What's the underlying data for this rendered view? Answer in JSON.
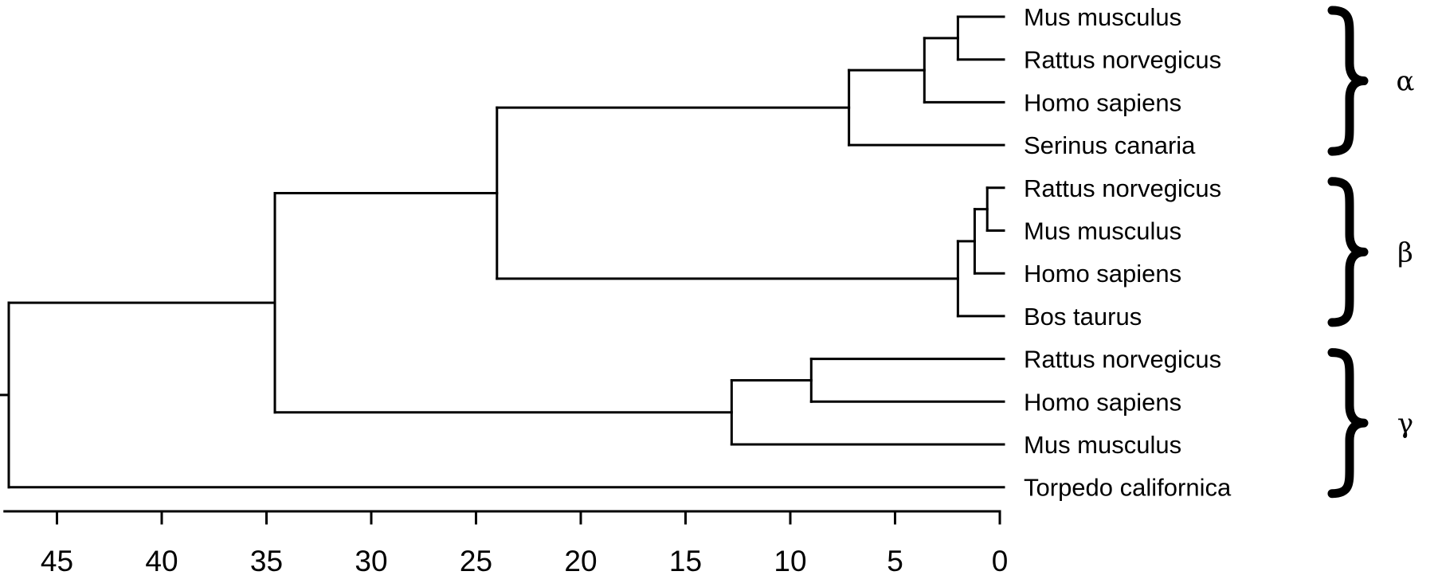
{
  "chart_data": {
    "type": "dendrogram",
    "x_axis": {
      "ticks": [
        "45",
        "40",
        "35",
        "30",
        "25",
        "20",
        "15",
        "10",
        "5",
        "0"
      ],
      "range": [
        47.5,
        0
      ]
    },
    "leaves": [
      {
        "id": "L1",
        "label": "Mus musculus"
      },
      {
        "id": "L2",
        "label": "Rattus norvegicus"
      },
      {
        "id": "L3",
        "label": "Homo sapiens"
      },
      {
        "id": "L4",
        "label": "Serinus canaria"
      },
      {
        "id": "L5",
        "label": "Rattus norvegicus"
      },
      {
        "id": "L6",
        "label": "Mus musculus"
      },
      {
        "id": "L7",
        "label": "Homo sapiens"
      },
      {
        "id": "L8",
        "label": "Bos taurus"
      },
      {
        "id": "L9",
        "label": "Rattus norvegicus"
      },
      {
        "id": "L10",
        "label": "Homo sapiens"
      },
      {
        "id": "L11",
        "label": "Mus musculus"
      },
      {
        "id": "L12",
        "label": "Torpedo californica"
      }
    ],
    "merges": [
      {
        "id": "N1",
        "height": 2.0,
        "children": [
          "L1",
          "L2"
        ]
      },
      {
        "id": "N2",
        "height": 3.6,
        "children": [
          "N1",
          "L3"
        ]
      },
      {
        "id": "N3",
        "height": 7.2,
        "children": [
          "N2",
          "L4"
        ]
      },
      {
        "id": "N4",
        "height": 0.6,
        "children": [
          "L5",
          "L6"
        ]
      },
      {
        "id": "N5",
        "height": 1.2,
        "children": [
          "N4",
          "L7"
        ]
      },
      {
        "id": "N6",
        "height": 2.0,
        "children": [
          "N5",
          "L8"
        ]
      },
      {
        "id": "N7",
        "height": 24.0,
        "children": [
          "N3",
          "N6"
        ]
      },
      {
        "id": "N8",
        "height": 9.0,
        "children": [
          "L9",
          "L10"
        ]
      },
      {
        "id": "N9",
        "height": 12.8,
        "children": [
          "N8",
          "L11"
        ]
      },
      {
        "id": "N10",
        "height": 34.6,
        "children": [
          "N7",
          "N9"
        ]
      },
      {
        "id": "N11",
        "height": 47.3,
        "children": [
          "N10",
          "L12"
        ]
      }
    ],
    "root": "N11",
    "groups": [
      {
        "label": "α",
        "leaves": [
          "L1",
          "L4"
        ]
      },
      {
        "label": "β",
        "leaves": [
          "L5",
          "L8"
        ]
      },
      {
        "label": "γ",
        "leaves": [
          "L9",
          "L12"
        ]
      }
    ]
  }
}
